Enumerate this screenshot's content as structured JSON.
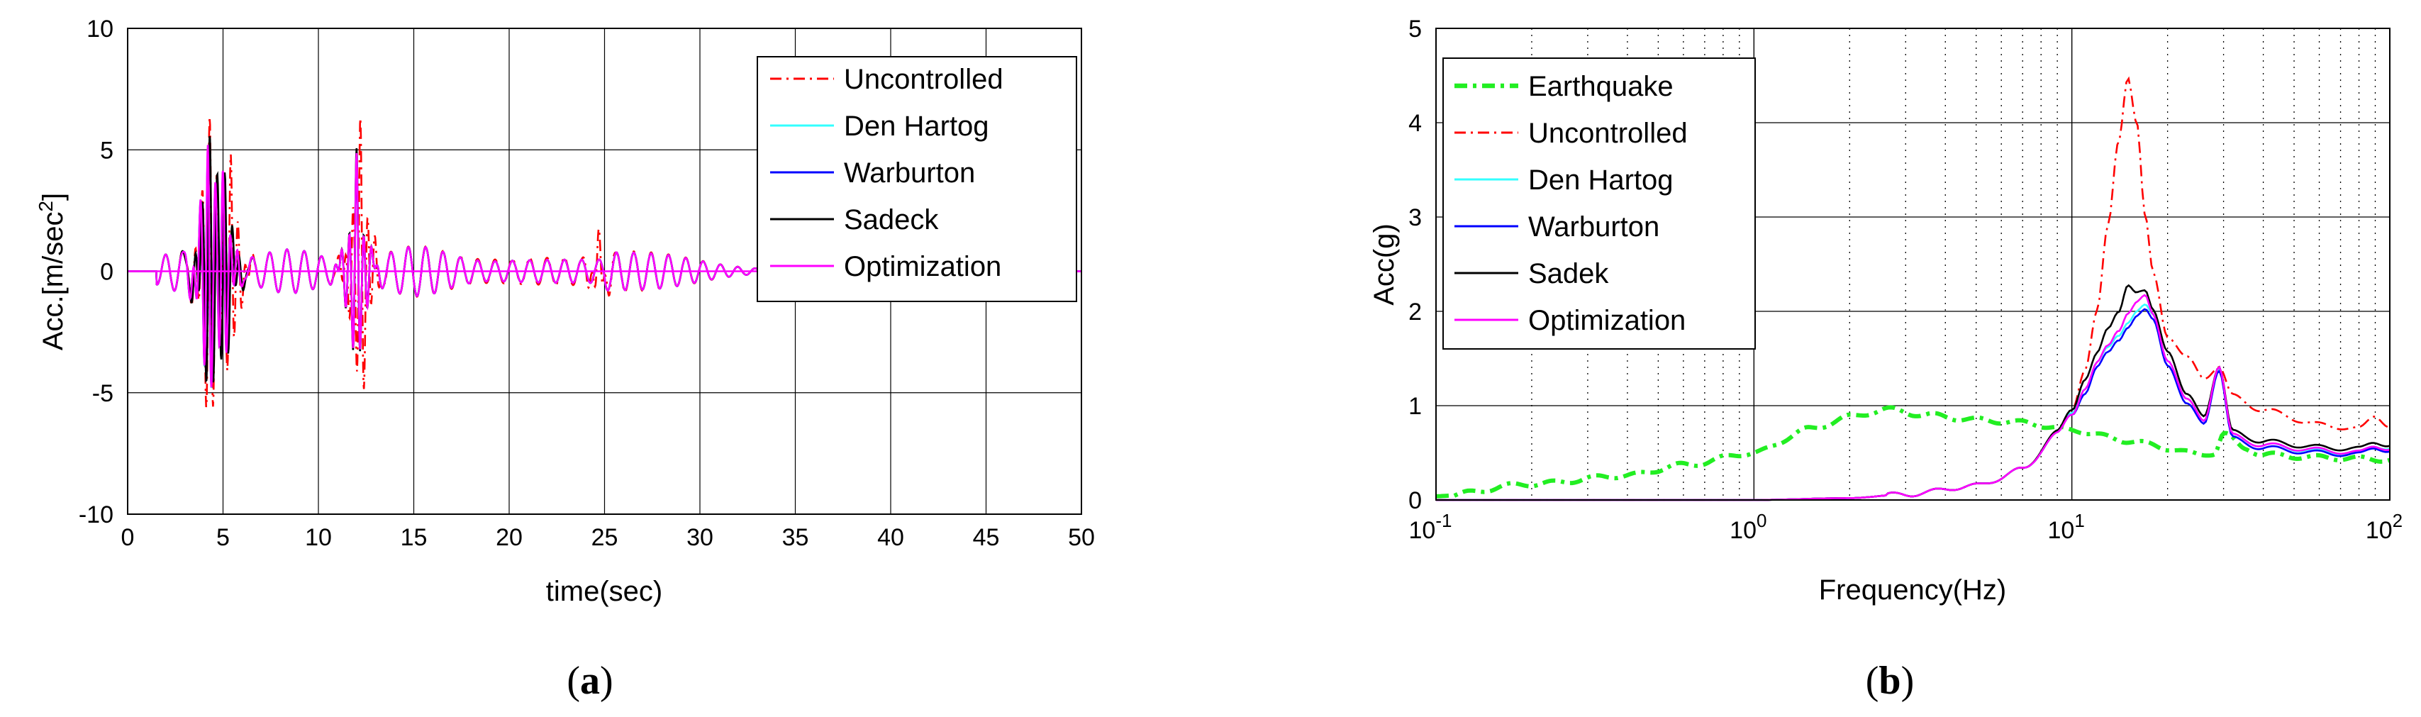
{
  "colors": {
    "uncontrolled": "#ff0000",
    "den_hartog": "#33ffff",
    "warburton": "#0000ff",
    "sadek": "#000000",
    "optimization": "#ff00ff",
    "earthquake": "#22ee22"
  },
  "chart_data": [
    {
      "type": "line",
      "panel_label": "a",
      "xlabel": "time(sec)",
      "ylabel": "Acc.[m/sec",
      "ylabel_sup": "2",
      "ylabel_end": "]",
      "xlim": [
        0,
        50
      ],
      "ylim": [
        -10,
        10
      ],
      "xticks": [
        "0",
        "5",
        "10",
        "15",
        "20",
        "25",
        "30",
        "35",
        "40",
        "45",
        "50"
      ],
      "yticks": [
        "-10",
        "-5",
        "0",
        "5",
        "10"
      ],
      "grid": true,
      "legend_position": "top-right",
      "series": [
        {
          "name": "Uncontrolled",
          "style": "dashdot",
          "peaks": [
            [
              4.3,
              6.9,
              -7.6
            ],
            [
              5.4,
              4.6,
              -4.5
            ],
            [
              12.2,
              6.3,
              -6.5
            ],
            [
              24.7,
              1.2,
              -1.0
            ]
          ]
        },
        {
          "name": "Den Hartog",
          "style": "solid",
          "peaks": [
            [
              4.2,
              5.2,
              -5.4
            ],
            [
              5.0,
              3.6,
              -3.5
            ],
            [
              12.0,
              4.3,
              -4.7
            ]
          ]
        },
        {
          "name": "Warburton",
          "style": "solid",
          "peaks": [
            [
              4.2,
              5.0,
              -5.2
            ],
            [
              5.0,
              3.5,
              -3.4
            ],
            [
              12.0,
              4.2,
              -4.6
            ]
          ]
        },
        {
          "name": "Sadeck",
          "style": "solid",
          "peaks": [
            [
              4.3,
              5.8,
              -5.6
            ],
            [
              5.1,
              3.8,
              -3.8
            ],
            [
              12.0,
              4.7,
              -4.9
            ]
          ]
        },
        {
          "name": "Optimization",
          "style": "solid",
          "peaks": [
            [
              4.2,
              5.4,
              -5.3
            ],
            [
              5.0,
              3.7,
              -3.6
            ],
            [
              12.0,
              4.5,
              -4.8
            ]
          ]
        }
      ]
    },
    {
      "type": "line",
      "panel_label": "b",
      "xlabel": "Frequency(Hz)",
      "ylabel": "Acc(g)",
      "xscale": "log",
      "xlim": [
        0.1,
        100
      ],
      "ylim": [
        0,
        5
      ],
      "xtick_bases": [
        "10",
        "10",
        "10",
        "10"
      ],
      "xtick_exps": [
        "-1",
        "0",
        "1",
        "2"
      ],
      "yticks": [
        "0",
        "1",
        "2",
        "3",
        "4",
        "5"
      ],
      "grid": true,
      "legend_position": "top-left",
      "series": [
        {
          "name": "Earthquake",
          "style": "dashdot-thick",
          "x": [
            0.1,
            0.2,
            0.4,
            0.6,
            1.0,
            1.5,
            2.0,
            2.6,
            3.5,
            5,
            7,
            10,
            15,
            20,
            25,
            28,
            30,
            35,
            40,
            60,
            100
          ],
          "y": [
            0.04,
            0.17,
            0.26,
            0.37,
            0.5,
            0.75,
            0.88,
            0.96,
            0.9,
            0.85,
            0.82,
            0.74,
            0.63,
            0.55,
            0.48,
            0.5,
            0.7,
            0.55,
            0.48,
            0.45,
            0.43
          ]
        },
        {
          "name": "Uncontrolled",
          "style": "dashdot",
          "x": [
            0.1,
            1,
            2,
            3,
            5,
            7,
            9,
            10,
            11,
            12,
            13,
            14,
            15,
            16,
            17,
            18,
            20,
            23,
            26,
            29,
            32,
            40,
            60,
            80,
            90,
            100
          ],
          "y": [
            0,
            0,
            0.02,
            0.06,
            0.15,
            0.32,
            0.7,
            0.95,
            1.4,
            2.0,
            2.9,
            3.8,
            4.5,
            4.0,
            3.0,
            2.4,
            1.75,
            1.5,
            1.3,
            1.42,
            1.1,
            0.95,
            0.8,
            0.75,
            0.9,
            0.78
          ]
        },
        {
          "name": "Den Hartog",
          "style": "solid",
          "x": [
            0.1,
            1,
            2,
            3,
            5,
            7,
            9,
            10,
            11,
            12,
            13,
            14,
            15,
            16,
            17,
            18,
            20,
            23,
            26,
            29,
            32,
            40,
            60,
            80,
            90,
            100
          ],
          "y": [
            0,
            0,
            0.02,
            0.06,
            0.15,
            0.32,
            0.7,
            0.92,
            1.2,
            1.45,
            1.6,
            1.75,
            1.9,
            2.0,
            2.05,
            1.95,
            1.5,
            1.05,
            0.85,
            1.4,
            0.68,
            0.58,
            0.52,
            0.5,
            0.58,
            0.55
          ]
        },
        {
          "name": "Warburton",
          "style": "solid",
          "x": [
            0.1,
            1,
            2,
            3,
            5,
            7,
            9,
            10,
            11,
            12,
            13,
            14,
            15,
            16,
            17,
            18,
            20,
            23,
            26,
            29,
            32,
            40,
            60,
            80,
            90,
            100
          ],
          "y": [
            0,
            0,
            0.02,
            0.06,
            0.15,
            0.32,
            0.7,
            0.9,
            1.15,
            1.4,
            1.55,
            1.7,
            1.85,
            1.95,
            2.0,
            1.9,
            1.45,
            1.0,
            0.82,
            1.38,
            0.65,
            0.55,
            0.5,
            0.48,
            0.56,
            0.52
          ]
        },
        {
          "name": "Sadek",
          "style": "solid",
          "x": [
            0.1,
            1,
            2,
            3,
            5,
            7,
            9,
            10,
            11,
            12,
            13,
            14,
            15,
            16,
            17,
            18,
            20,
            23,
            26,
            29,
            32,
            40,
            60,
            80,
            90,
            100
          ],
          "y": [
            0,
            0,
            0.02,
            0.06,
            0.15,
            0.32,
            0.72,
            0.95,
            1.3,
            1.55,
            1.8,
            2.0,
            2.3,
            2.2,
            2.2,
            2.0,
            1.6,
            1.1,
            0.9,
            1.42,
            0.72,
            0.62,
            0.56,
            0.54,
            0.62,
            0.58
          ]
        },
        {
          "name": "Optimization",
          "style": "solid",
          "x": [
            0.1,
            1,
            2,
            3,
            5,
            7,
            9,
            10,
            11,
            12,
            13,
            14,
            15,
            16,
            17,
            18,
            20,
            23,
            26,
            29,
            32,
            40,
            60,
            80,
            90,
            100
          ],
          "y": [
            0,
            0,
            0.02,
            0.06,
            0.15,
            0.32,
            0.7,
            0.9,
            1.2,
            1.45,
            1.62,
            1.8,
            2.0,
            2.1,
            2.15,
            1.95,
            1.5,
            1.05,
            0.85,
            1.42,
            0.68,
            0.58,
            0.53,
            0.5,
            0.58,
            0.54
          ]
        }
      ]
    }
  ]
}
